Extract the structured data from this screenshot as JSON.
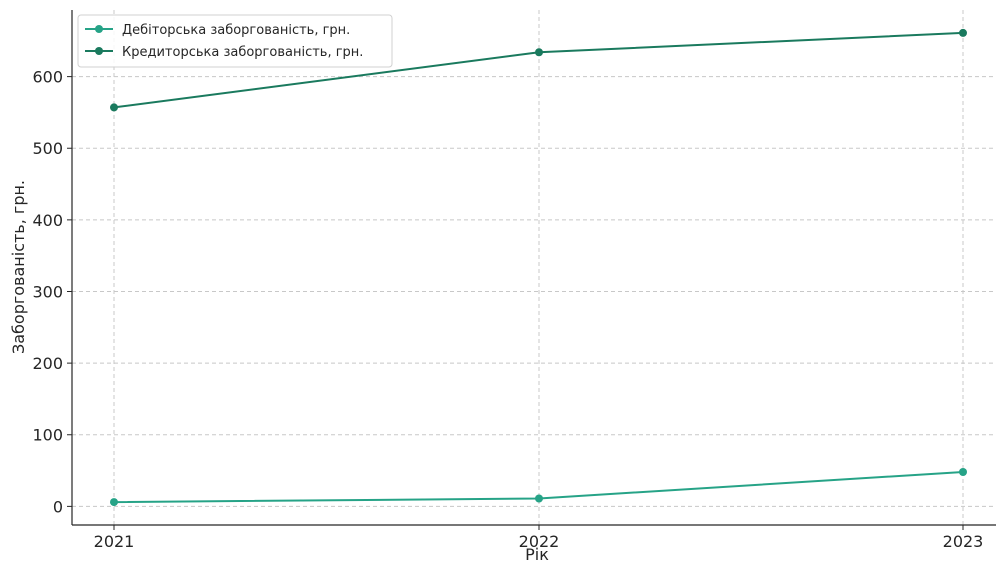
{
  "chart_data": {
    "type": "line",
    "categories": [
      "2021",
      "2022",
      "2023"
    ],
    "series": [
      {
        "name": "Дебіторська заборгованість, грн.",
        "values": [
          6,
          11,
          48
        ],
        "color": "#26a387"
      },
      {
        "name": "Кредиторська заборгованість, грн.",
        "values": [
          557,
          634,
          661
        ],
        "color": "#1a7a5e"
      }
    ],
    "title": "",
    "xlabel": "Рік",
    "ylabel": "Заборгованість, грн.",
    "ylim": [
      -26,
      693
    ],
    "yticks": [
      "0",
      "100",
      "200",
      "300",
      "400",
      "500",
      "600"
    ],
    "grid": true,
    "legend_position": "top-left"
  }
}
